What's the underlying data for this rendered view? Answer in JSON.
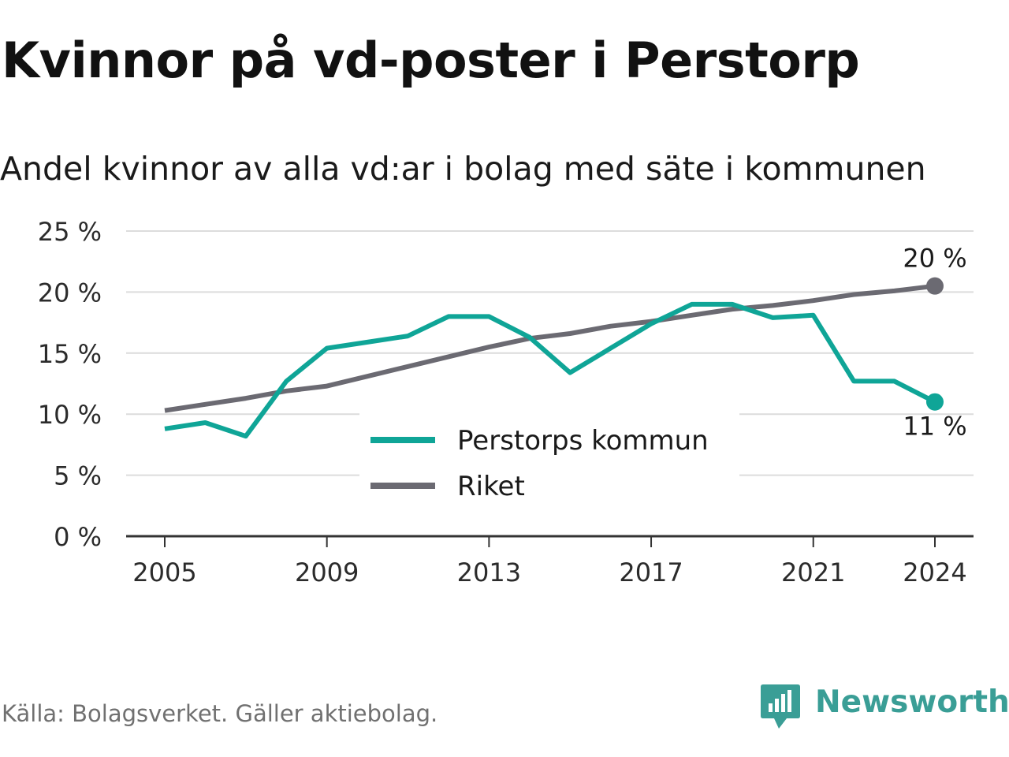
{
  "header": {
    "title": "Kvinnor på vd-poster i Perstorp",
    "subtitle": "Andel kvinnor av alla vd:ar i bolag med säte i kommunen"
  },
  "footer": {
    "source": "Källa: Bolagsverket. Gäller aktiebolag.",
    "brand": "Newsworthy",
    "brand_icon": "newsworthy-logo-icon"
  },
  "colors": {
    "kommun": "#0fa597",
    "riket": "#6b6a72",
    "grid": "#dcdcdc",
    "axis": "#333333",
    "brand": "#3a9e96"
  },
  "chart_data": {
    "type": "line",
    "x": [
      2005,
      2006,
      2007,
      2008,
      2009,
      2010,
      2011,
      2012,
      2013,
      2014,
      2015,
      2016,
      2017,
      2018,
      2019,
      2020,
      2021,
      2022,
      2023,
      2024
    ],
    "series": [
      {
        "name": "Perstorps kommun",
        "values": [
          8.8,
          9.3,
          8.2,
          12.7,
          15.4,
          15.9,
          16.4,
          18.0,
          18.0,
          16.3,
          13.4,
          15.4,
          17.4,
          19.0,
          19.0,
          17.9,
          18.1,
          12.7,
          12.7,
          11.0
        ]
      },
      {
        "name": "Riket",
        "values": [
          10.3,
          10.8,
          11.3,
          11.9,
          12.3,
          13.1,
          13.9,
          14.7,
          15.5,
          16.2,
          16.6,
          17.2,
          17.6,
          18.1,
          18.6,
          18.9,
          19.3,
          19.8,
          20.1,
          20.5
        ]
      }
    ],
    "yticks": [
      "0 %",
      "5 %",
      "10 %",
      "15 %",
      "20 %",
      "25 %"
    ],
    "ytick_values": [
      0,
      5,
      10,
      15,
      20,
      25
    ],
    "xticks": [
      "2005",
      "2009",
      "2013",
      "2017",
      "2021",
      "2024"
    ],
    "xtick_values": [
      2005,
      2009,
      2013,
      2017,
      2021,
      2024
    ],
    "ylim": [
      0,
      25
    ],
    "xlim": [
      2005,
      2024
    ],
    "end_labels": [
      "11 %",
      "20 %"
    ],
    "legend": [
      "Perstorps kommun",
      "Riket"
    ],
    "legend_position": "center",
    "grid": true
  }
}
